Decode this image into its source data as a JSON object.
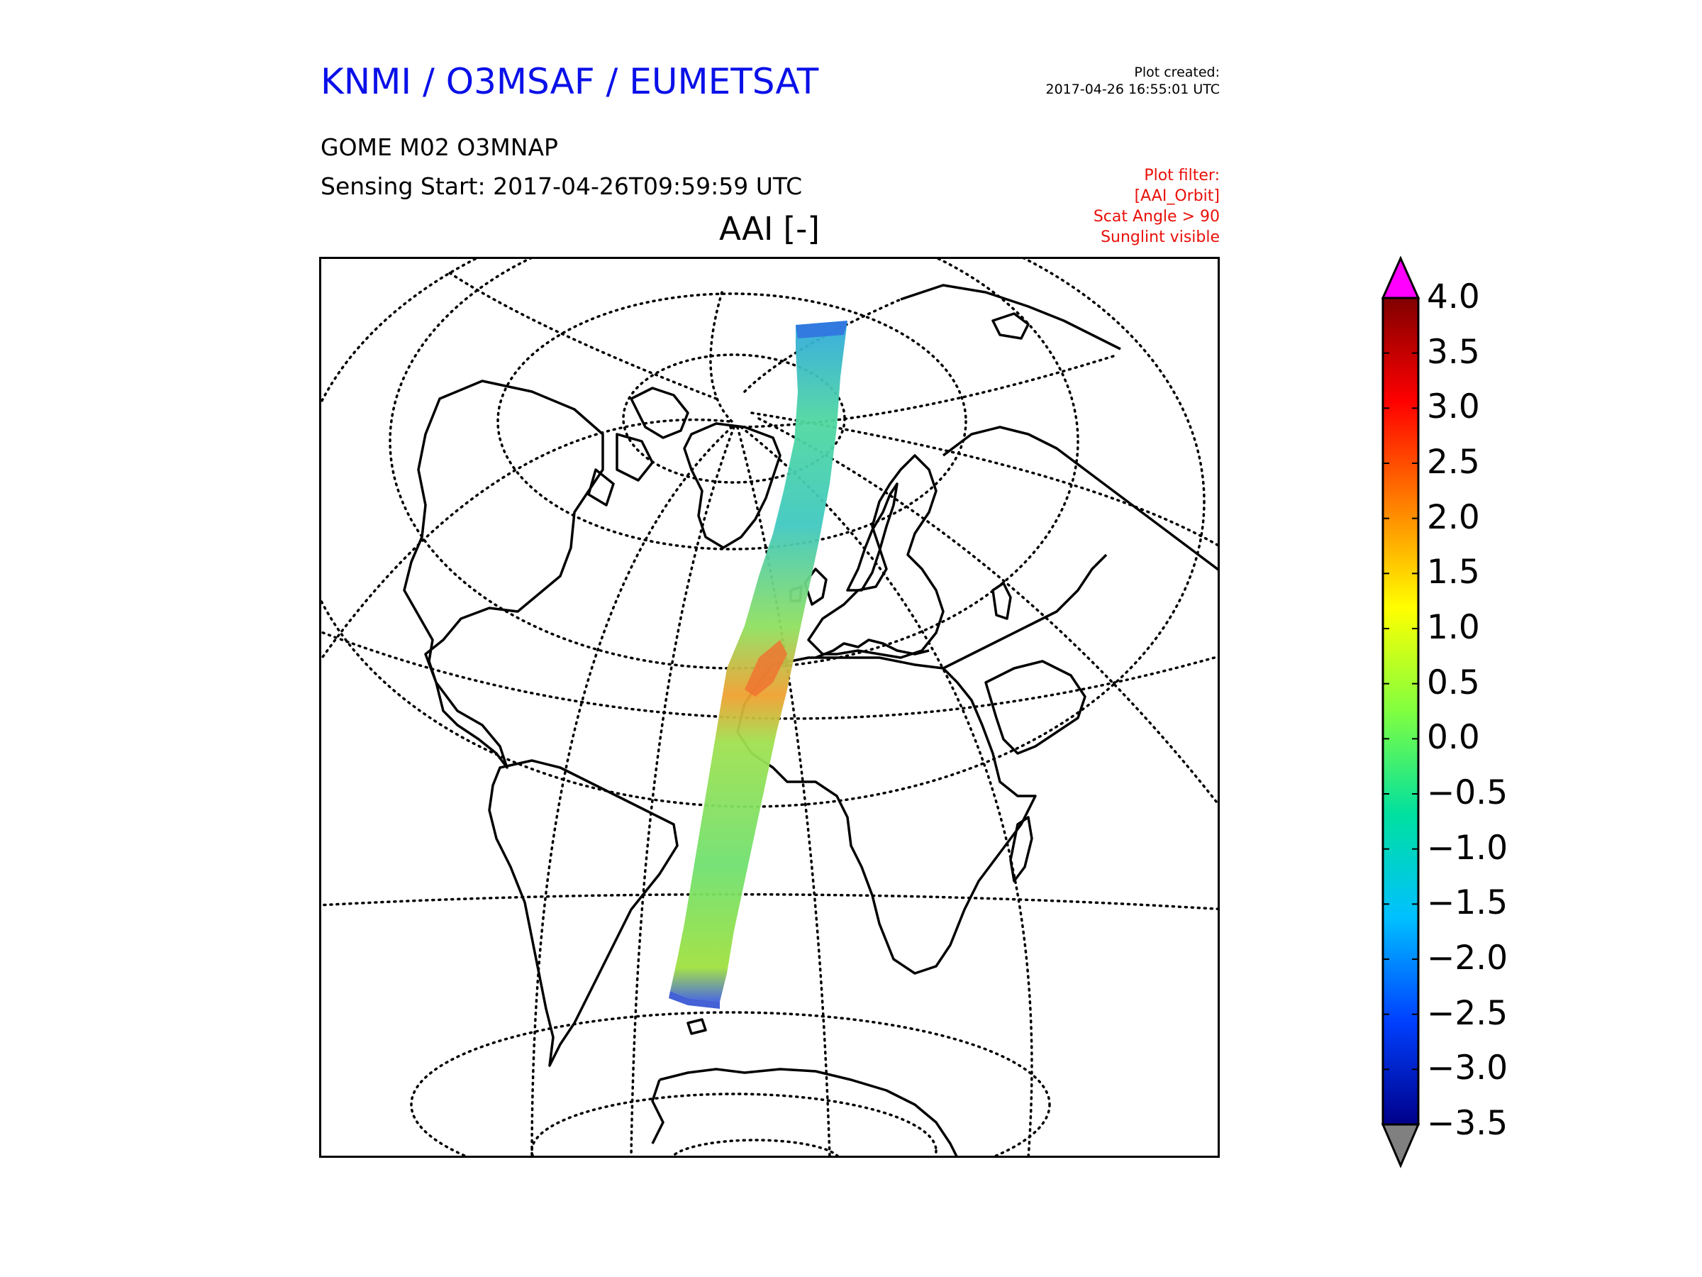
{
  "header": {
    "org_title": "KNMI / O3MSAF / EUMETSAT",
    "created_label": "Plot created:",
    "created_value": "2017-04-26 16:55:01 UTC",
    "product": "GOME M02 O3MNAP",
    "sensing_start": "Sensing Start: 2017-04-26T09:59:59 UTC",
    "filter_lines": [
      "Plot filter:",
      "[AAI_Orbit]",
      "Scat Angle > 90",
      "Sunglint visible"
    ],
    "map_title": "AAI [-]"
  },
  "colorbar": {
    "ticks": [
      "4.0",
      "3.5",
      "3.0",
      "2.5",
      "2.0",
      "1.5",
      "1.0",
      "0.5",
      "0.0",
      "−0.5",
      "−1.0",
      "−1.5",
      "−2.0",
      "−2.5",
      "−3.0",
      "−3.5"
    ],
    "over_color": "#ff00ff",
    "under_color": "#808080",
    "gradient_stops": [
      "#800000",
      "#ff0000",
      "#ff8000",
      "#ffff00",
      "#80ff40",
      "#00e0a0",
      "#00c0ff",
      "#0040ff",
      "#00008a"
    ]
  },
  "colors": {
    "title_blue": "#0a10e8",
    "filter_red": "#e8100a"
  }
}
